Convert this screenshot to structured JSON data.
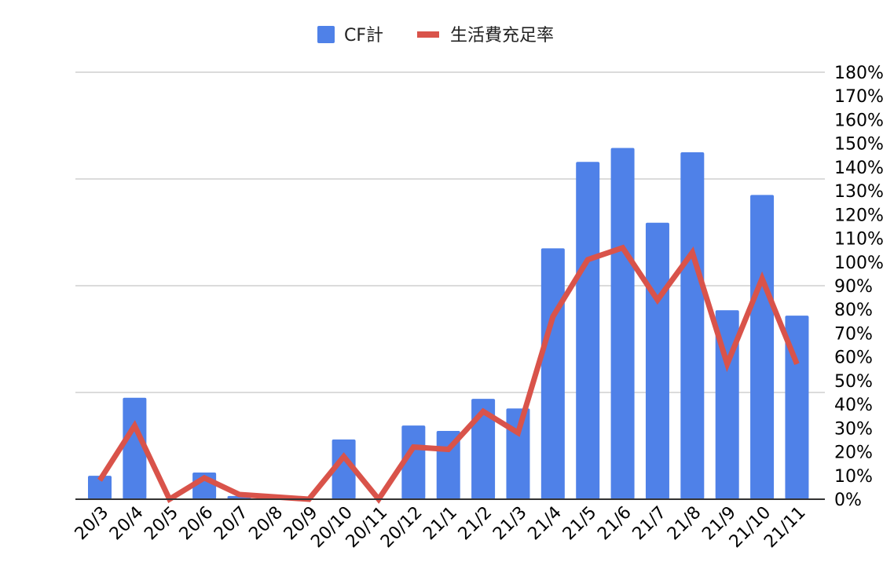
{
  "chart_data": {
    "type": "bar",
    "legend": {
      "position": "top"
    },
    "categories": [
      "20/3",
      "20/4",
      "20/5",
      "20/6",
      "20/7",
      "20/8",
      "20/9",
      "20/10",
      "20/11",
      "20/12",
      "21/1",
      "21/2",
      "21/3",
      "21/4",
      "21/5",
      "21/6",
      "21/7",
      "21/8",
      "21/9",
      "21/10",
      "21/11"
    ],
    "series": [
      {
        "name": "CF計",
        "type": "bar",
        "color": "#4f81e8",
        "axis": "left",
        "values": [
          22,
          95,
          0,
          25,
          3,
          2,
          0,
          56,
          0,
          69,
          64,
          94,
          85,
          235,
          316,
          329,
          259,
          325,
          177,
          285,
          172
        ]
      },
      {
        "name": "生活費充足率",
        "type": "line",
        "color": "#d9534a",
        "axis": "right",
        "values": [
          8,
          31,
          0,
          9,
          2,
          1,
          0,
          18,
          0,
          22,
          21,
          37,
          28,
          77,
          101,
          106,
          84,
          104,
          57,
          93,
          57
        ]
      }
    ],
    "left_axis": {
      "ylim": [
        0,
        400
      ],
      "gridlines": [
        0,
        100,
        200,
        300,
        400
      ],
      "labels_shown": false
    },
    "right_axis": {
      "ylim": [
        0,
        180
      ],
      "ticks": [
        "0%",
        "10%",
        "20%",
        "30%",
        "40%",
        "50%",
        "60%",
        "70%",
        "80%",
        "90%",
        "100%",
        "110%",
        "120%",
        "130%",
        "140%",
        "150%",
        "160%",
        "170%",
        "180%"
      ]
    },
    "grid": true
  }
}
